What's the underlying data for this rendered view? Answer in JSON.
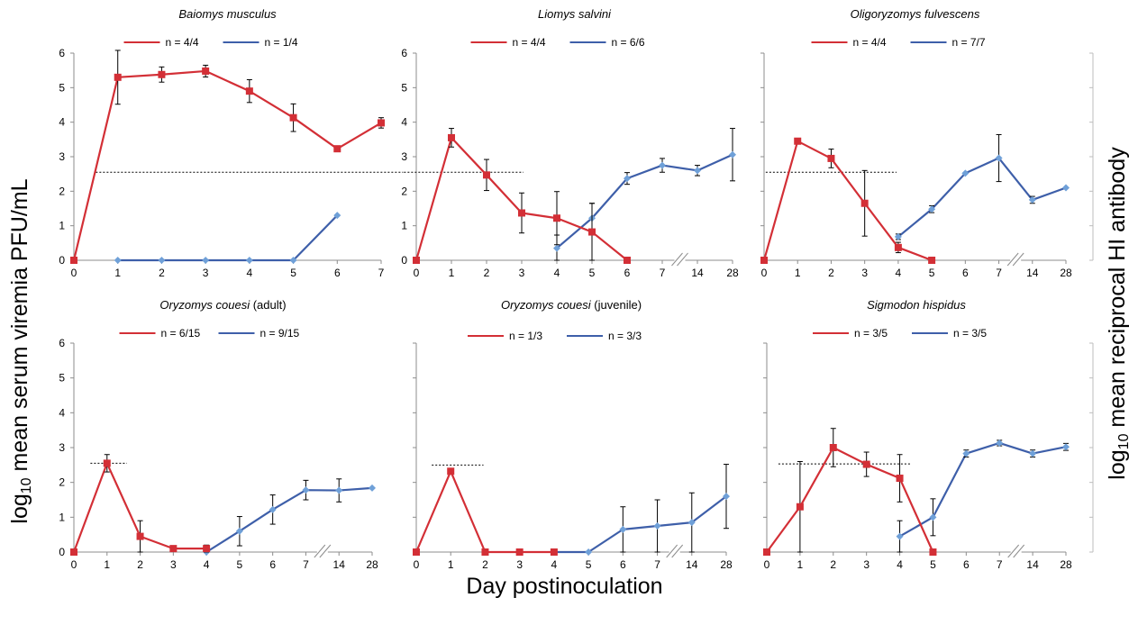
{
  "axis_titles": {
    "y_left_pre": "log",
    "y_left_sub": "10",
    "y_left_post": " mean serum viremia PFU/mL",
    "y_right_pre": "log",
    "y_right_sub": "10",
    "y_right_post": " mean reciprocal HI antibody",
    "x": "Day postinoculation"
  },
  "colors": {
    "viremia": "#d32f36",
    "antibody": "#3e5fa9",
    "antibody_marker": "#6fa0d8",
    "error_bar": "#000000",
    "threshold": "#000000"
  },
  "chart_data": [
    {
      "type": "line",
      "title": "Baiomys musculus",
      "title_suffix": "",
      "x": [
        "0",
        "1",
        "2",
        "3",
        "4",
        "5",
        "6",
        "7"
      ],
      "ylim": [
        0,
        6
      ],
      "yticks": [
        "0",
        "1",
        "2",
        "3",
        "4",
        "5",
        "6"
      ],
      "threshold": {
        "y": 2.55,
        "x_from": 0.5,
        "x_to": 7.5
      },
      "axis_break": null,
      "series": [
        {
          "name": "n = 4/4",
          "kind": "viremia",
          "points": [
            [
              0,
              0
            ],
            [
              1,
              5.3
            ],
            [
              2,
              5.38
            ],
            [
              3,
              5.48
            ],
            [
              4,
              4.9
            ],
            [
              5,
              4.13
            ],
            [
              6,
              3.23
            ],
            [
              7,
              3.98
            ]
          ],
          "err": [
            null,
            0.78,
            0.22,
            0.17,
            0.33,
            0.4,
            null,
            0.15
          ]
        },
        {
          "name": "n = 1/4",
          "kind": "antibody",
          "points": [
            [
              1,
              0
            ],
            [
              2,
              0
            ],
            [
              3,
              0
            ],
            [
              4,
              0
            ],
            [
              5,
              0
            ],
            [
              6,
              1.3
            ]
          ],
          "err": [
            null,
            null,
            null,
            null,
            null,
            null
          ]
        }
      ]
    },
    {
      "type": "line",
      "title": "Liomys salvini",
      "title_suffix": "",
      "x": [
        "0",
        "1",
        "2",
        "3",
        "4",
        "5",
        "6",
        "7",
        "14",
        "28"
      ],
      "ylim": [
        0,
        6
      ],
      "yticks": [
        "0",
        "1",
        "2",
        "3",
        "4",
        "5",
        "6"
      ],
      "threshold": {
        "y": 2.55,
        "x_from": -0.35,
        "x_to": 3.05
      },
      "axis_break": 7.5,
      "series": [
        {
          "name": "n = 4/4",
          "kind": "viremia",
          "points": [
            [
              0,
              0
            ],
            [
              1,
              3.55
            ],
            [
              2,
              2.47
            ],
            [
              3,
              1.37
            ],
            [
              4,
              1.22
            ],
            [
              5,
              0.82
            ],
            [
              6,
              0
            ]
          ],
          "err": [
            null,
            0.27,
            0.45,
            0.58,
            0.77,
            0.83,
            null
          ]
        },
        {
          "name": "n = 6/6",
          "kind": "antibody",
          "points": [
            [
              4,
              0.35
            ],
            [
              5,
              1.22
            ],
            [
              6,
              2.37
            ],
            [
              7,
              2.75
            ],
            [
              8,
              2.6
            ],
            [
              9,
              3.06
            ]
          ],
          "err": [
            0.38,
            0.43,
            0.17,
            0.2,
            0.15,
            0.76
          ]
        }
      ]
    },
    {
      "type": "line",
      "title": "Oligoryzomys fulvescens",
      "title_suffix": "",
      "x": [
        "0",
        "1",
        "2",
        "3",
        "4",
        "5",
        "6",
        "7",
        "14",
        "28"
      ],
      "ylim": [
        0,
        6
      ],
      "yticks": [],
      "threshold": {
        "y": 2.55,
        "x_from": 0.05,
        "x_to": 3.95
      },
      "axis_break": 7.5,
      "series": [
        {
          "name": "n = 4/4",
          "kind": "viremia",
          "points": [
            [
              0,
              0
            ],
            [
              1,
              3.45
            ],
            [
              2,
              2.95
            ],
            [
              3,
              1.65
            ],
            [
              4,
              0.37
            ],
            [
              5,
              0
            ]
          ],
          "err": [
            null,
            0.08,
            0.27,
            0.95,
            0.15,
            null
          ]
        },
        {
          "name": "n = 7/7",
          "kind": "antibody",
          "points": [
            [
              4,
              0.68
            ],
            [
              5,
              1.48
            ],
            [
              6,
              2.52
            ],
            [
              7,
              2.96
            ],
            [
              8,
              1.75
            ],
            [
              9,
              2.1
            ]
          ],
          "err": [
            0.08,
            0.1,
            null,
            0.68,
            0.1,
            null
          ]
        }
      ]
    },
    {
      "type": "line",
      "title": "Oryzomys couesi",
      "title_suffix": " (adult)",
      "x": [
        "0",
        "1",
        "2",
        "3",
        "4",
        "5",
        "6",
        "7",
        "14",
        "28"
      ],
      "ylim": [
        0,
        6
      ],
      "yticks": [
        "0",
        "1",
        "2",
        "3",
        "4",
        "5",
        "6"
      ],
      "threshold": {
        "y": 2.55,
        "x_from": 0.5,
        "x_to": 1.6
      },
      "axis_break": 7.5,
      "series": [
        {
          "name": "n = 6/15",
          "kind": "viremia",
          "points": [
            [
              0,
              0
            ],
            [
              1,
              2.55
            ],
            [
              2,
              0.45
            ],
            [
              3,
              0.1
            ],
            [
              4,
              0.1
            ]
          ],
          "err": [
            null,
            0.25,
            0.45,
            null,
            0.1
          ]
        },
        {
          "name": "n = 9/15",
          "kind": "antibody",
          "points": [
            [
              4,
              0
            ],
            [
              5,
              0.6
            ],
            [
              6,
              1.22
            ],
            [
              7,
              1.78
            ],
            [
              8,
              1.77
            ],
            [
              9,
              1.84
            ]
          ],
          "err": [
            null,
            0.42,
            0.42,
            0.28,
            0.33,
            null
          ]
        }
      ]
    },
    {
      "type": "line",
      "title": "Oryzomys couesi",
      "title_suffix": " (juvenile)",
      "x": [
        "0",
        "1",
        "2",
        "3",
        "4",
        "5",
        "6",
        "7",
        "14",
        "28"
      ],
      "ylim": [
        0,
        6
      ],
      "yticks": [],
      "threshold": {
        "y": 2.5,
        "x_from": 0.45,
        "x_to": 1.95
      },
      "axis_break": 7.5,
      "series": [
        {
          "name": "n = 1/3",
          "kind": "viremia",
          "points": [
            [
              0,
              0
            ],
            [
              1,
              2.32
            ],
            [
              2,
              0
            ],
            [
              3,
              0
            ],
            [
              4,
              0
            ]
          ],
          "err": [
            null,
            null,
            null,
            null,
            null
          ]
        },
        {
          "name": "n = 3/3",
          "kind": "antibody",
          "points": [
            [
              4,
              0
            ],
            [
              5,
              0
            ],
            [
              6,
              0.65
            ],
            [
              7,
              0.75
            ],
            [
              8,
              0.85
            ],
            [
              9,
              1.6
            ]
          ],
          "err": [
            null,
            null,
            0.65,
            0.75,
            0.85,
            0.92
          ]
        }
      ]
    },
    {
      "type": "line",
      "title": "Sigmodon hispidus",
      "title_suffix": "",
      "x": [
        "0",
        "1",
        "2",
        "3",
        "4",
        "5",
        "6",
        "7",
        "14",
        "28"
      ],
      "ylim": [
        0,
        6
      ],
      "yticks": [],
      "threshold": {
        "y": 2.53,
        "x_from": 0.35,
        "x_to": 4.35
      },
      "axis_break": 7.5,
      "series": [
        {
          "name": "n = 3/5",
          "kind": "viremia",
          "points": [
            [
              0,
              0
            ],
            [
              1,
              1.3
            ],
            [
              2,
              3
            ],
            [
              3,
              2.52
            ],
            [
              4,
              2.12
            ],
            [
              5,
              0
            ]
          ],
          "err": [
            null,
            1.3,
            0.55,
            0.35,
            0.68,
            null
          ]
        },
        {
          "name": "n = 3/5",
          "kind": "antibody",
          "points": [
            [
              4,
              0.45
            ],
            [
              5,
              1
            ],
            [
              6,
              2.83
            ],
            [
              7,
              3.13
            ],
            [
              8,
              2.83
            ],
            [
              9,
              3.02
            ]
          ],
          "err": [
            0.45,
            0.53,
            0.1,
            0.08,
            0.1,
            0.1
          ]
        }
      ]
    }
  ]
}
